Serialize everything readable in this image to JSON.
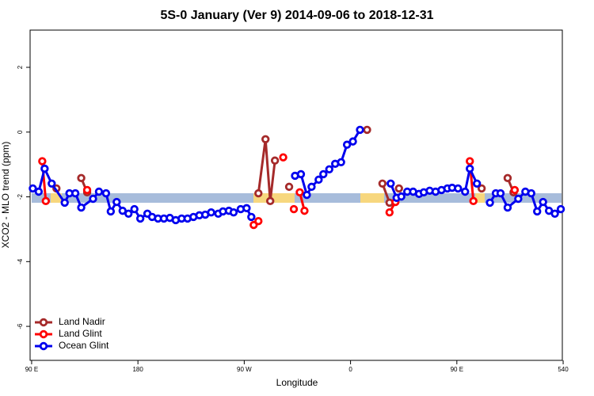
{
  "chart_data": {
    "type": "line",
    "title": "5S-0 January (Ver 9)   2014-09-06 to 2018-12-31",
    "xlabel": "Longitude",
    "ylabel": "XCO2 - MLO trend (ppm)",
    "xlim": [
      88.7,
      539.3
    ],
    "ylim": [
      -7.05,
      3.15
    ],
    "xticks": [
      {
        "value": 90,
        "label": "90 E"
      },
      180,
      {
        "value": 270,
        "label": "90 W"
      },
      {
        "value": 360,
        "label": "0"
      },
      {
        "value": 450,
        "label": "90 E"
      },
      540
    ],
    "yticks": [
      -6,
      -4,
      -2,
      0,
      2
    ],
    "legend": "bottom-left",
    "series": [
      {
        "name": "Land Nadir",
        "color": "#a52a2a",
        "x": [
          111,
          null,
          132,
          137,
          null,
          282,
          288,
          292,
          296,
          null,
          308,
          null,
          374,
          null,
          387,
          393,
          null,
          401,
          null,
          471,
          null,
          493,
          498
        ],
        "values": [
          -1.74,
          null,
          -1.42,
          -1.86,
          null,
          -1.89,
          -0.22,
          -2.13,
          -0.88,
          null,
          -1.69,
          null,
          0.07,
          null,
          -1.59,
          -2.18,
          null,
          -1.74,
          null,
          -1.74,
          null,
          -1.42,
          -1.86
        ]
      },
      {
        "name": "Land Glint",
        "color": "#ff0000",
        "x": [
          99,
          102,
          null,
          137,
          null,
          278,
          282,
          null,
          303,
          null,
          312,
          null,
          317,
          321,
          null,
          393,
          398,
          null,
          461,
          464,
          null,
          499
        ],
        "values": [
          -0.9,
          -2.13,
          null,
          -1.79,
          null,
          -2.87,
          -2.75,
          null,
          -0.78,
          null,
          -2.38,
          null,
          -1.86,
          -2.43,
          null,
          -2.48,
          -2.16,
          null,
          -0.9,
          -2.13,
          null,
          -1.79
        ]
      },
      {
        "name": "Ocean Glint",
        "color": "#0000ee",
        "x": [
          91,
          96,
          101,
          107,
          118,
          122,
          127,
          132,
          142,
          147,
          153,
          157,
          162,
          167,
          172,
          177,
          182,
          188,
          192,
          197,
          202,
          207,
          212,
          217,
          222,
          227,
          232,
          237,
          242,
          248,
          252,
          257,
          261,
          267,
          272,
          276,
          null,
          313,
          318,
          323,
          327,
          333,
          337,
          342,
          347,
          352,
          357,
          362,
          368,
          null,
          394,
          399,
          403,
          408,
          413,
          418,
          422,
          427,
          432,
          437,
          442,
          446,
          451,
          457,
          461,
          467,
          null,
          478,
          483,
          487,
          493,
          502,
          508,
          513,
          518,
          523,
          528,
          533,
          538
        ],
        "values": [
          -1.74,
          -1.84,
          -1.13,
          -1.59,
          -2.18,
          -1.89,
          -1.89,
          -2.33,
          -2.06,
          -1.84,
          -1.89,
          -2.45,
          -2.16,
          -2.43,
          -2.52,
          -2.38,
          -2.67,
          -2.52,
          -2.62,
          -2.67,
          -2.67,
          -2.65,
          -2.72,
          -2.67,
          -2.67,
          -2.62,
          -2.57,
          -2.55,
          -2.48,
          -2.52,
          -2.45,
          -2.43,
          -2.48,
          -2.38,
          -2.35,
          -2.62,
          null,
          -1.35,
          -1.3,
          -1.94,
          -1.69,
          -1.47,
          -1.3,
          -1.15,
          -0.98,
          -0.93,
          -0.39,
          -0.29,
          0.07,
          null,
          -1.59,
          -2.03,
          -1.99,
          -1.84,
          -1.84,
          -1.91,
          -1.86,
          -1.81,
          -1.84,
          -1.79,
          -1.74,
          -1.72,
          -1.74,
          -1.84,
          -1.13,
          -1.59,
          null,
          -2.18,
          -1.89,
          -1.89,
          -2.33,
          -2.06,
          -1.84,
          -1.89,
          -2.45,
          -2.16,
          -2.43,
          -2.52,
          -2.38
        ]
      }
    ]
  }
}
